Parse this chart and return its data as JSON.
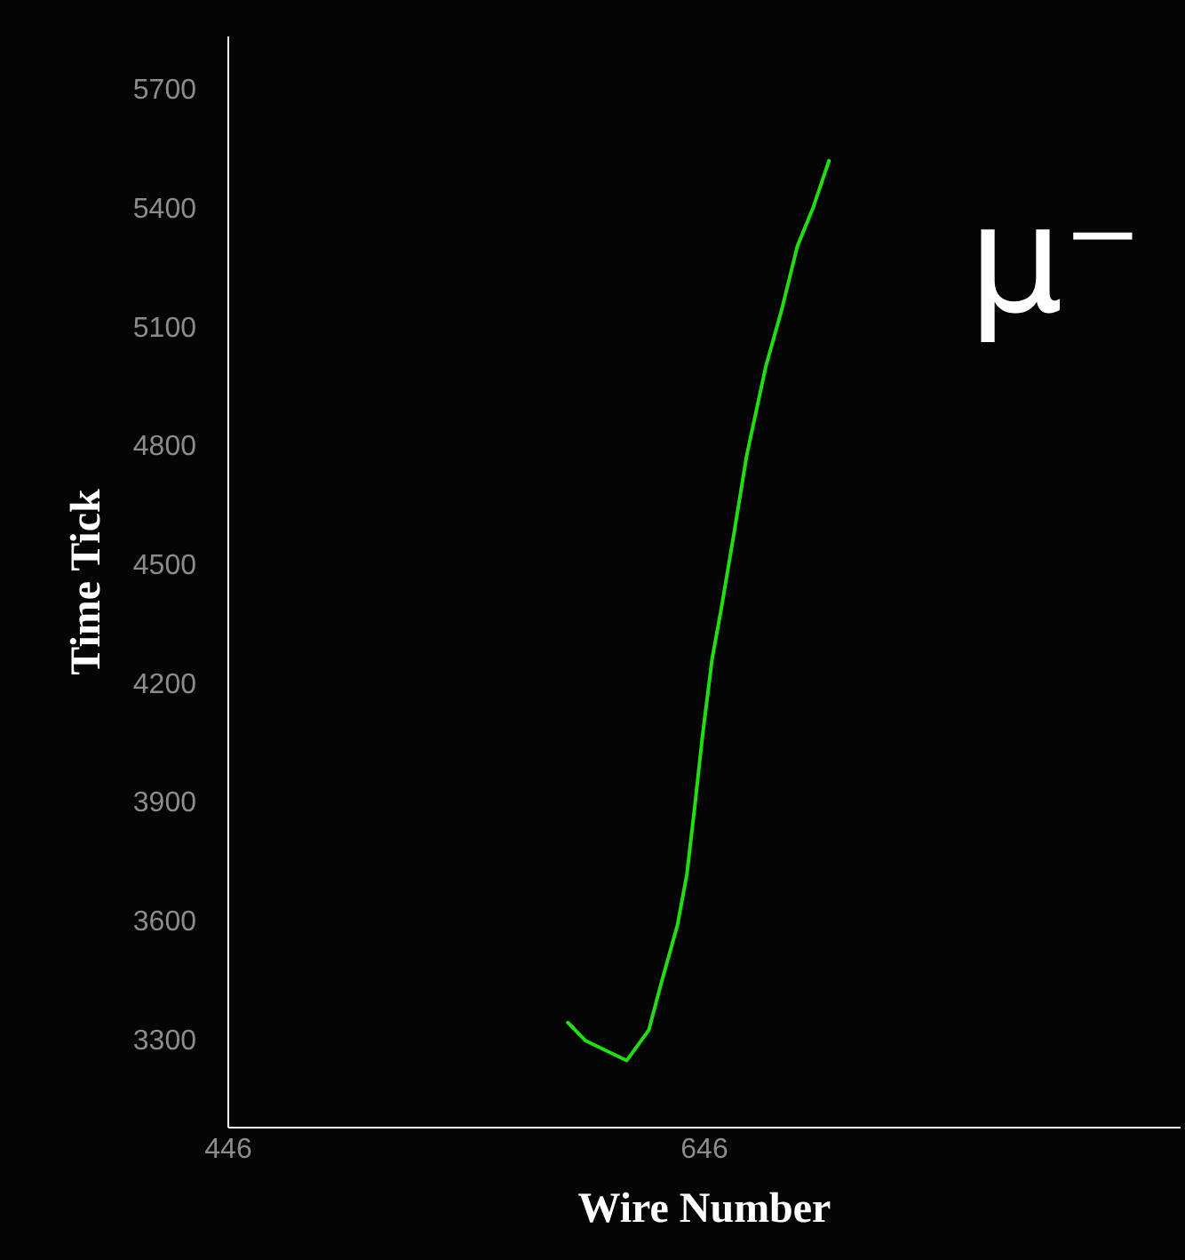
{
  "chart_data": {
    "type": "line",
    "xlabel": "Wire Number",
    "ylabel": "Time Tick",
    "xlim": [
      446,
      846
    ],
    "xticks": [
      446,
      646
    ],
    "ylim": [
      3080,
      5835
    ],
    "yticks": [
      3300,
      3600,
      3900,
      4200,
      4500,
      4800,
      5100,
      5400,
      5700
    ],
    "grid": false,
    "marker": "none",
    "line_style": "solid",
    "annotations": [
      "μ⁻"
    ],
    "series": [
      {
        "color": "#22dd11",
        "x": [
          589,
          596.5,
          613.7,
          623,
          628.3,
          635,
          639,
          642.4,
          645.6,
          649.6,
          653.5,
          658.9,
          664.1,
          672.1,
          678.8,
          685.4,
          692,
          698.7
        ],
        "values": [
          3343,
          3297,
          3247,
          3324,
          3444,
          3588,
          3717,
          3893,
          4069,
          4261,
          4390,
          4582,
          4774,
          4998,
          5142,
          5303,
          5400,
          5519
        ]
      }
    ]
  }
}
